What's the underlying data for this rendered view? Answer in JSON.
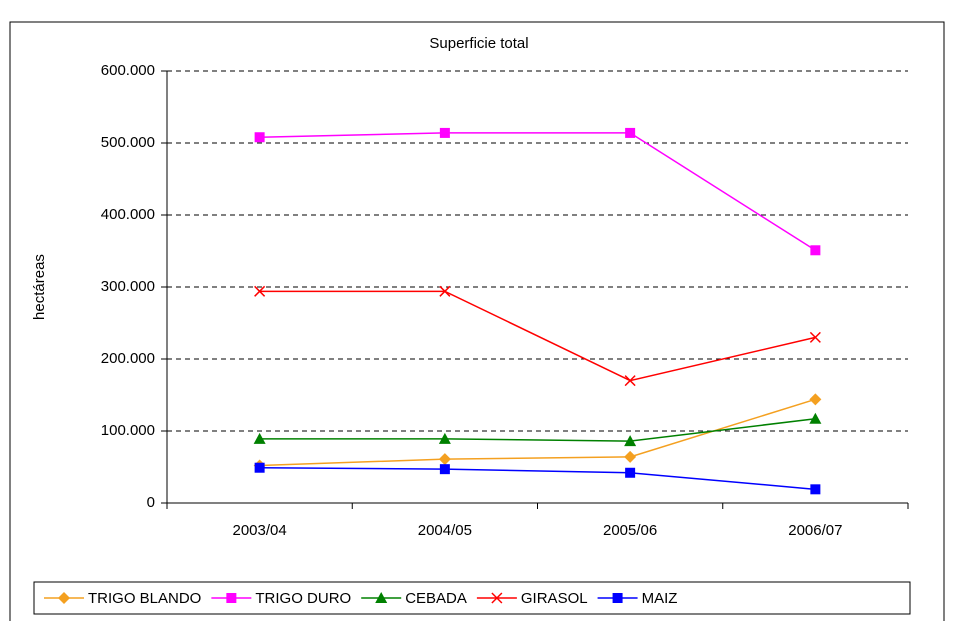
{
  "chart_data": {
    "type": "line",
    "title": "Superficie total",
    "y_label": "hectáreas",
    "categories": [
      "2003/04",
      "2004/05",
      "2005/06",
      "2006/07"
    ],
    "series": [
      {
        "name": "TRIGO BLANDO",
        "color": "#f4a020",
        "marker": "diamond",
        "values": [
          52000,
          61000,
          64000,
          144000
        ]
      },
      {
        "name": "TRIGO DURO",
        "color": "#ff00ff",
        "marker": "square",
        "values": [
          508000,
          514000,
          514000,
          351000
        ]
      },
      {
        "name": "CEBADA",
        "color": "#008000",
        "marker": "triangle",
        "values": [
          89000,
          89000,
          86000,
          117000
        ]
      },
      {
        "name": "GIRASOL",
        "color": "#ff0000",
        "marker": "x",
        "values": [
          294000,
          294000,
          170000,
          230000
        ]
      },
      {
        "name": "MAIZ",
        "color": "#0000ff",
        "marker": "square",
        "values": [
          49000,
          47000,
          42000,
          19000
        ]
      }
    ],
    "ylim": [
      0,
      600000
    ],
    "yticks": [
      0,
      {
        "value": 100000,
        "label": "100.000"
      },
      {
        "value": 200000,
        "label": "200.000"
      },
      {
        "value": 300000,
        "label": "300.000"
      },
      {
        "value": 400000,
        "label": "400.000"
      },
      {
        "value": 500000,
        "label": "500.000"
      },
      {
        "value": 600000,
        "label": "600.000"
      }
    ],
    "grid": true,
    "legend": "bottom"
  }
}
